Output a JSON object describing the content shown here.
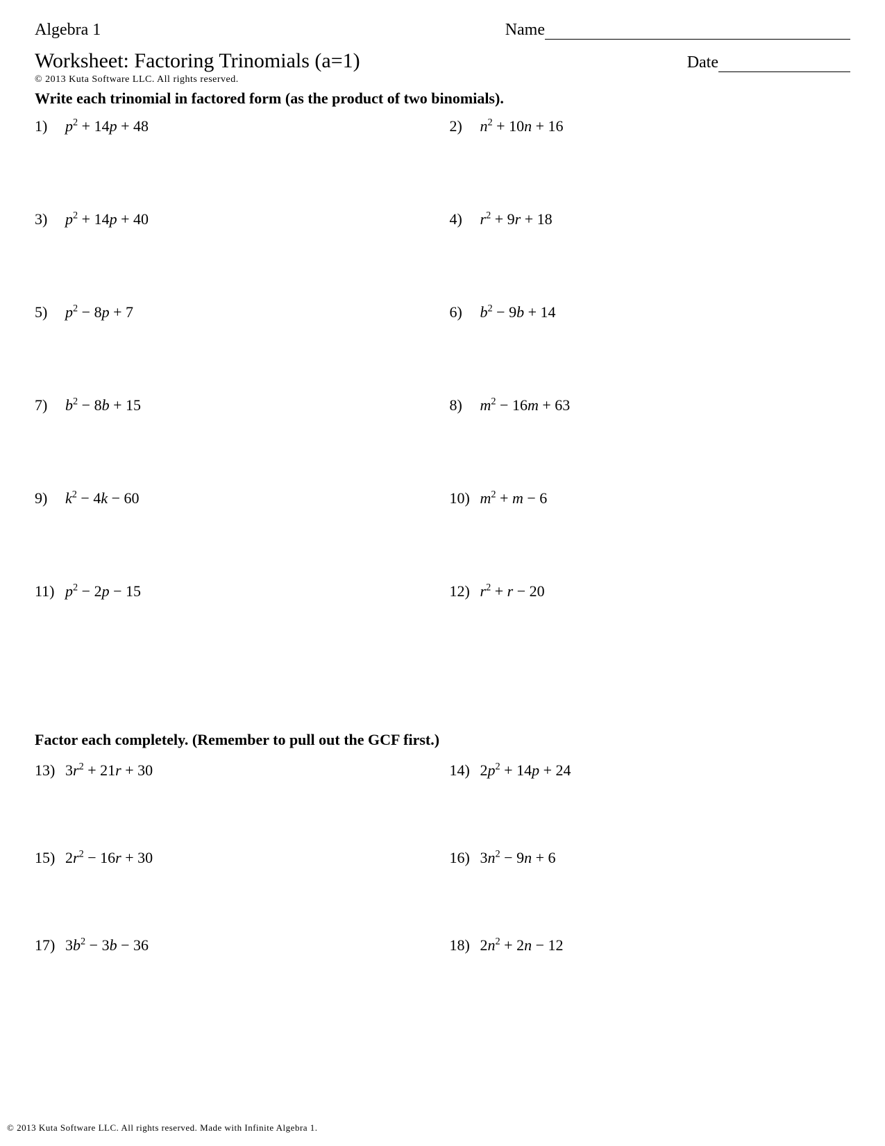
{
  "header": {
    "course": "Algebra 1",
    "name_label": "Name",
    "date_label": "Date"
  },
  "title": "Worksheet: Factoring Trinomials (a=1)",
  "copyright_top": "© 2013 Kuta Software LLC.  All rights reserved.",
  "section1": {
    "instructions": "Write each trinomial in factored form (as the product of two binomials).",
    "problems": [
      {
        "n": "1)",
        "coef": "",
        "var": "p",
        "b": "+ 14",
        "bvar": "p",
        "c": "+ 48"
      },
      {
        "n": "2)",
        "coef": "",
        "var": "n",
        "b": "+ 10",
        "bvar": "n",
        "c": "+ 16"
      },
      {
        "n": "3)",
        "coef": "",
        "var": "p",
        "b": "+ 14",
        "bvar": "p",
        "c": "+ 40"
      },
      {
        "n": "4)",
        "coef": "",
        "var": "r",
        "b": "+ 9",
        "bvar": "r",
        "c": "+ 18"
      },
      {
        "n": "5)",
        "coef": "",
        "var": "p",
        "b": "− 8",
        "bvar": "p",
        "c": "+ 7"
      },
      {
        "n": "6)",
        "coef": "",
        "var": "b",
        "b": "− 9",
        "bvar": "b",
        "c": "+ 14"
      },
      {
        "n": "7)",
        "coef": "",
        "var": "b",
        "b": "− 8",
        "bvar": "b",
        "c": "+ 15"
      },
      {
        "n": "8)",
        "coef": "",
        "var": "m",
        "b": "− 16",
        "bvar": "m",
        "c": "+ 63"
      },
      {
        "n": "9)",
        "coef": "",
        "var": "k",
        "b": "− 4",
        "bvar": "k",
        "c": "− 60"
      },
      {
        "n": "10)",
        "coef": "",
        "var": "m",
        "b": "+ ",
        "bvar": "m",
        "c": "− 6"
      },
      {
        "n": "11)",
        "coef": "",
        "var": "p",
        "b": "− 2",
        "bvar": "p",
        "c": "− 15"
      },
      {
        "n": "12)",
        "coef": "",
        "var": "r",
        "b": "+ ",
        "bvar": "r",
        "c": "− 20"
      }
    ]
  },
  "section2": {
    "instructions": "Factor each completely. (Remember to pull out the GCF first.)",
    "problems": [
      {
        "n": "13)",
        "coef": "3",
        "var": "r",
        "b": "+ 21",
        "bvar": "r",
        "c": "+ 30"
      },
      {
        "n": "14)",
        "coef": "2",
        "var": "p",
        "b": "+ 14",
        "bvar": "p",
        "c": "+ 24"
      },
      {
        "n": "15)",
        "coef": "2",
        "var": "r",
        "b": "− 16",
        "bvar": "r",
        "c": "+ 30"
      },
      {
        "n": "16)",
        "coef": "3",
        "var": "n",
        "b": "− 9",
        "bvar": "n",
        "c": "+ 6"
      },
      {
        "n": "17)",
        "coef": "3",
        "var": "b",
        "b": "− 3",
        "bvar": "b",
        "c": "− 36"
      },
      {
        "n": "18)",
        "coef": "2",
        "var": "n",
        "b": "+ 2",
        "bvar": "n",
        "c": "− 12"
      }
    ]
  },
  "footer": "© 2013 Kuta Software LLC.  All rights reserved.  Made with Infinite Algebra 1."
}
